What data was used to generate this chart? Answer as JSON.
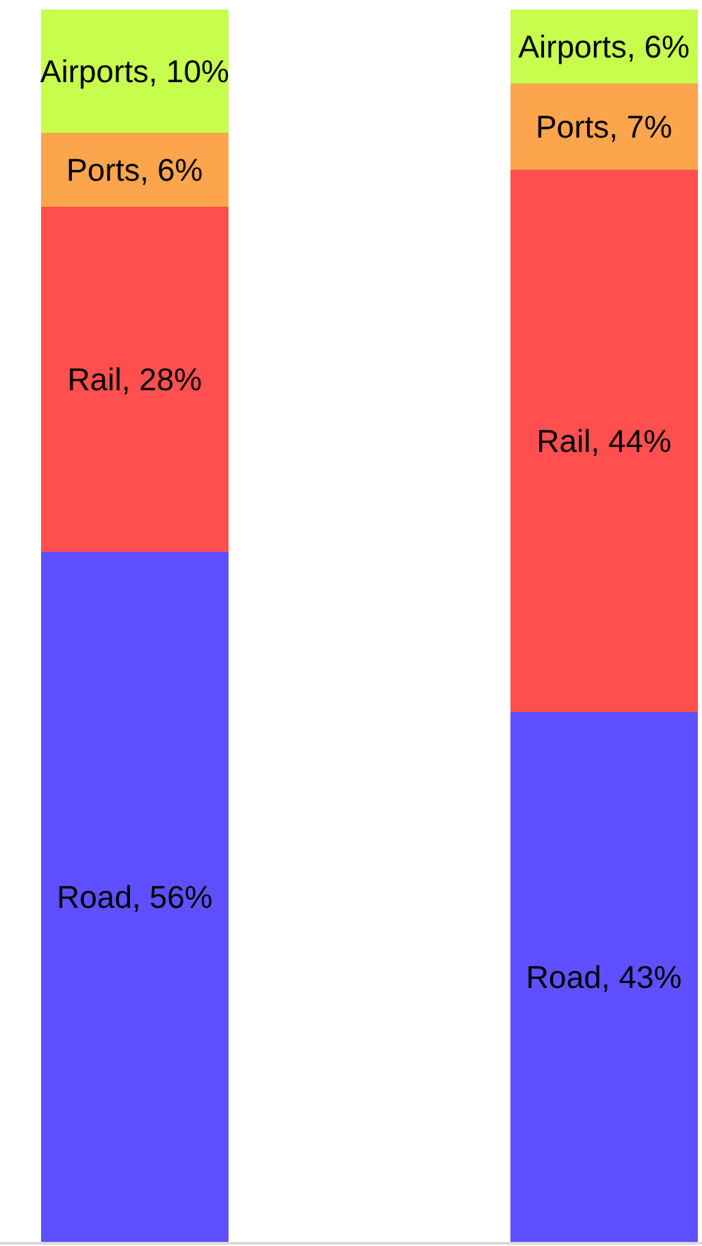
{
  "chart_data": {
    "type": "bar",
    "stacked": true,
    "categories": [
      null,
      null
    ],
    "series": [
      {
        "color": "#5f50ff",
        "values": [
          56,
          43
        ],
        "value_labels": [
          "Road, 56%",
          "Road, 43%"
        ]
      },
      {
        "color": "#ff4f4f",
        "values": [
          28,
          44
        ],
        "value_labels": [
          "Rail, 28%",
          "Rail, 44%"
        ]
      },
      {
        "color": "#fca54d",
        "values": [
          6,
          7
        ],
        "value_labels": [
          "Ports, 6%",
          "Ports, 7%"
        ]
      },
      {
        "color": "#c7fd4d",
        "values": [
          10,
          6
        ],
        "value_labels": [
          "Airports, 10%",
          "Airports, 6%"
        ]
      }
    ],
    "ylim": [
      0,
      100
    ],
    "tick_labels": false
  }
}
